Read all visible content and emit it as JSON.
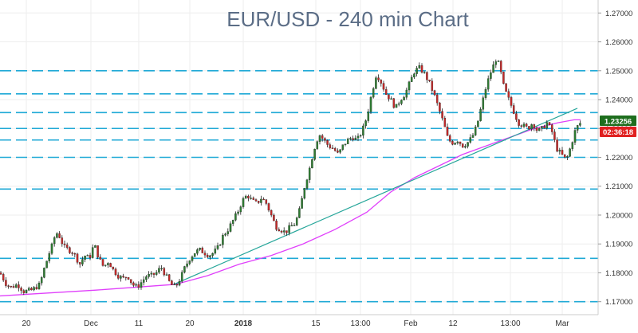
{
  "chart_data": {
    "type": "candlestick",
    "title": "EUR/USD - 240 min Chart",
    "ylim": [
      1.1655,
      1.2745
    ],
    "y_ticks": [
      "1.27000",
      "1.26000",
      "1.25000",
      "1.24000",
      "1.23000",
      "1.22000",
      "1.21000",
      "1.20000",
      "1.19000",
      "1.18000",
      "1.17000"
    ],
    "x_ticks": [
      {
        "label": "20",
        "bold": false
      },
      {
        "label": "Dec",
        "bold": false
      },
      {
        "label": "11",
        "bold": false
      },
      {
        "label": "20",
        "bold": false
      },
      {
        "label": "2018",
        "bold": true
      },
      {
        "label": "15",
        "bold": false
      },
      {
        "label": "13:00",
        "bold": false
      },
      {
        "label": "Feb",
        "bold": false
      },
      {
        "label": "12",
        "bold": false
      },
      {
        "label": "13:00",
        "bold": false
      },
      {
        "label": "Mar",
        "bold": false
      }
    ],
    "horizontal_levels": [
      1.25,
      1.242,
      1.2355,
      1.23,
      1.226,
      1.22,
      1.209,
      1.185,
      1.17
    ],
    "price_path": [
      [
        0,
        1.18
      ],
      [
        8,
        1.176
      ],
      [
        14,
        1.175
      ],
      [
        22,
        1.176
      ],
      [
        30,
        1.1735
      ],
      [
        40,
        1.174
      ],
      [
        50,
        1.176
      ],
      [
        56,
        1.182
      ],
      [
        62,
        1.187
      ],
      [
        66,
        1.19
      ],
      [
        70,
        1.194
      ],
      [
        74,
        1.193
      ],
      [
        80,
        1.189
      ],
      [
        86,
        1.188
      ],
      [
        92,
        1.187
      ],
      [
        100,
        1.183
      ],
      [
        106,
        1.186
      ],
      [
        112,
        1.185
      ],
      [
        118,
        1.19
      ],
      [
        124,
        1.185
      ],
      [
        130,
        1.182
      ],
      [
        136,
        1.184
      ],
      [
        142,
        1.181
      ],
      [
        148,
        1.179
      ],
      [
        154,
        1.178
      ],
      [
        160,
        1.179
      ],
      [
        166,
        1.176
      ],
      [
        172,
        1.175
      ],
      [
        178,
        1.177
      ],
      [
        184,
        1.179
      ],
      [
        190,
        1.179
      ],
      [
        196,
        1.18
      ],
      [
        202,
        1.182
      ],
      [
        208,
        1.179
      ],
      [
        214,
        1.176
      ],
      [
        220,
        1.175
      ],
      [
        226,
        1.178
      ],
      [
        232,
        1.182
      ],
      [
        238,
        1.185
      ],
      [
        244,
        1.187
      ],
      [
        250,
        1.188
      ],
      [
        256,
        1.187
      ],
      [
        262,
        1.186
      ],
      [
        268,
        1.187
      ],
      [
        274,
        1.189
      ],
      [
        280,
        1.193
      ],
      [
        286,
        1.195
      ],
      [
        292,
        1.198
      ],
      [
        298,
        1.201
      ],
      [
        304,
        1.205
      ],
      [
        310,
        1.207
      ],
      [
        316,
        1.205
      ],
      [
        322,
        1.204
      ],
      [
        328,
        1.206
      ],
      [
        334,
        1.204
      ],
      [
        340,
        1.2
      ],
      [
        346,
        1.196
      ],
      [
        352,
        1.195
      ],
      [
        358,
        1.194
      ],
      [
        364,
        1.196
      ],
      [
        370,
        1.197
      ],
      [
        376,
        1.202
      ],
      [
        382,
        1.21
      ],
      [
        388,
        1.216
      ],
      [
        394,
        1.223
      ],
      [
        400,
        1.228
      ],
      [
        406,
        1.226
      ],
      [
        412,
        1.224
      ],
      [
        418,
        1.223
      ],
      [
        424,
        1.221
      ],
      [
        430,
        1.224
      ],
      [
        436,
        1.226
      ],
      [
        442,
        1.227
      ],
      [
        448,
        1.226
      ],
      [
        454,
        1.229
      ],
      [
        460,
        1.234
      ],
      [
        466,
        1.242
      ],
      [
        472,
        1.249
      ],
      [
        478,
        1.246
      ],
      [
        484,
        1.242
      ],
      [
        490,
        1.24
      ],
      [
        496,
        1.237
      ],
      [
        502,
        1.24
      ],
      [
        508,
        1.242
      ],
      [
        514,
        1.246
      ],
      [
        520,
        1.25
      ],
      [
        526,
        1.251
      ],
      [
        532,
        1.249
      ],
      [
        538,
        1.246
      ],
      [
        544,
        1.242
      ],
      [
        550,
        1.237
      ],
      [
        556,
        1.232
      ],
      [
        562,
        1.226
      ],
      [
        568,
        1.225
      ],
      [
        574,
        1.226
      ],
      [
        580,
        1.224
      ],
      [
        586,
        1.225
      ],
      [
        592,
        1.227
      ],
      [
        598,
        1.231
      ],
      [
        604,
        1.238
      ],
      [
        610,
        1.245
      ],
      [
        616,
        1.25
      ],
      [
        622,
        1.254
      ],
      [
        626,
        1.252
      ],
      [
        632,
        1.244
      ],
      [
        638,
        1.24
      ],
      [
        644,
        1.236
      ],
      [
        650,
        1.232
      ],
      [
        656,
        1.231
      ],
      [
        662,
        1.23
      ],
      [
        668,
        1.232
      ],
      [
        674,
        1.229
      ],
      [
        680,
        1.23
      ],
      [
        686,
        1.232
      ],
      [
        692,
        1.229
      ],
      [
        698,
        1.223
      ],
      [
        704,
        1.221
      ],
      [
        710,
        1.219
      ],
      [
        716,
        1.224
      ],
      [
        722,
        1.23
      ],
      [
        728,
        1.232
      ]
    ],
    "moving_average": {
      "color": "#e040fb",
      "points": [
        [
          0,
          1.172
        ],
        [
          60,
          1.173
        ],
        [
          120,
          1.174
        ],
        [
          170,
          1.175
        ],
        [
          220,
          1.176
        ],
        [
          260,
          1.179
        ],
        [
          300,
          1.183
        ],
        [
          340,
          1.186
        ],
        [
          380,
          1.19
        ],
        [
          420,
          1.195
        ],
        [
          460,
          1.201
        ],
        [
          490,
          1.208
        ],
        [
          520,
          1.213
        ],
        [
          550,
          1.217
        ],
        [
          580,
          1.221
        ],
        [
          610,
          1.224
        ],
        [
          640,
          1.227
        ],
        [
          670,
          1.23
        ],
        [
          700,
          1.232
        ],
        [
          720,
          1.233
        ],
        [
          728,
          1.233
        ]
      ]
    },
    "trendline": {
      "color": "#26a69a",
      "points": [
        [
          218,
          1.176
        ],
        [
          724,
          1.237
        ]
      ]
    },
    "last_price": "1.23256",
    "countdown": "02:36:18"
  },
  "colors": {
    "level_line": "#1fa9d6",
    "candle_up": "#2e7d32",
    "candle_down": "#c62828",
    "wick": "#222222",
    "badge_up": "#1e6e1e",
    "badge_countdown": "#e02020",
    "grid": "#eeeeee",
    "axis": "#cccccc"
  }
}
